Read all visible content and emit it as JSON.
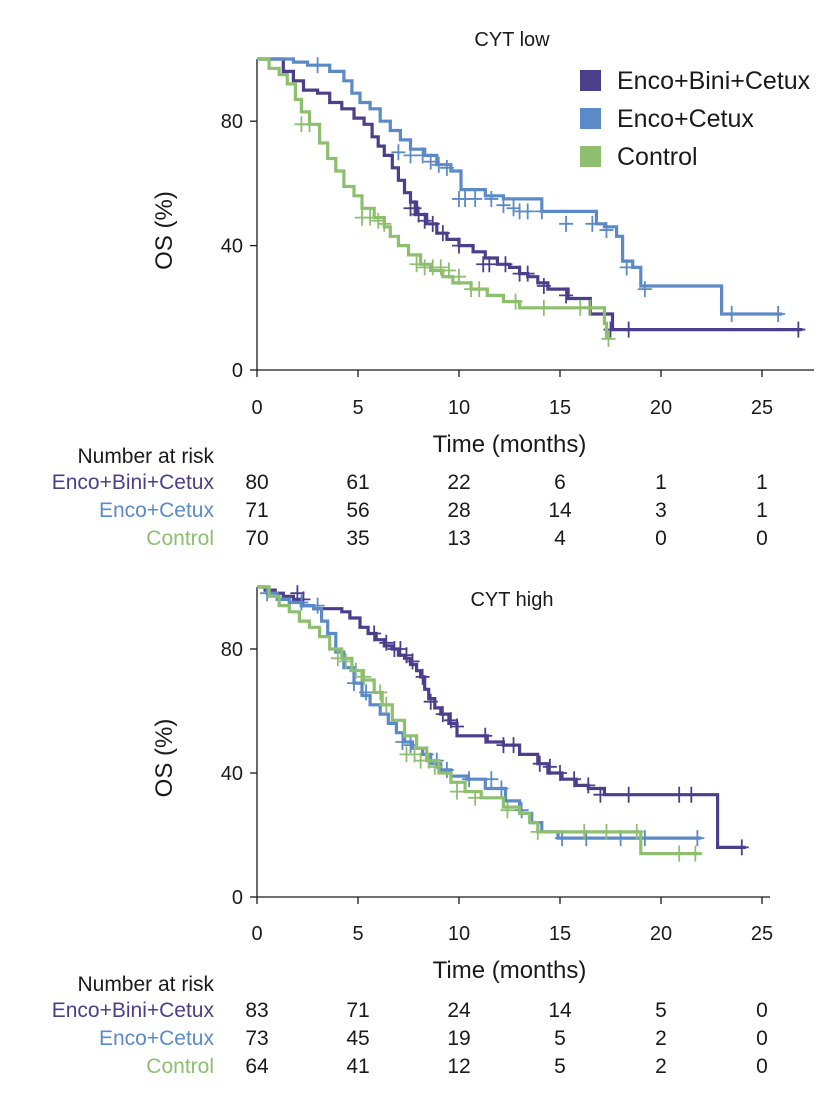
{
  "colors": {
    "s1": "#4b3f8c",
    "s2": "#5b8ac6",
    "s3": "#8dbf6f"
  },
  "legend": {
    "items": [
      "Enco+Bini+Cetux",
      "Enco+Cetux",
      "Control"
    ]
  },
  "risk": {
    "header": "Number at risk",
    "times": [
      0,
      5,
      10,
      15,
      20,
      25
    ]
  },
  "chart_data": [
    {
      "type": "line",
      "title": "CYT low",
      "xlabel": "Time (months)",
      "ylabel": "OS (%)",
      "xlim": [
        0,
        27
      ],
      "ylim": [
        0,
        100
      ],
      "xticks": [
        0,
        5,
        10,
        15,
        20,
        25
      ],
      "yticks": [
        0,
        40,
        80
      ],
      "legend_position": "top-right",
      "series": [
        {
          "name": "Enco+Bini+Cetux",
          "x": [
            0,
            1.3,
            1.8,
            2.3,
            3.0,
            3.6,
            4.2,
            4.8,
            5.3,
            5.7,
            6.0,
            6.3,
            6.7,
            7.0,
            7.3,
            7.6,
            7.9,
            8.4,
            8.9,
            9.4,
            10.0,
            10.7,
            11.3,
            11.9,
            12.5,
            13.0,
            13.4,
            13.9,
            14.4,
            15.4,
            16.5,
            17.6,
            27
          ],
          "y": [
            100,
            96,
            93,
            90,
            89,
            86,
            84,
            81,
            79,
            75,
            72,
            69,
            65,
            61,
            57,
            54,
            50,
            47,
            44,
            42,
            40,
            38,
            36,
            34,
            33,
            31,
            30,
            28,
            26,
            23,
            18,
            13,
            13
          ],
          "censor_x": [
            7.6,
            7.8,
            8.0,
            8.3,
            8.7,
            9.2,
            10.0,
            11.2,
            11.5,
            12.3,
            13.0,
            13.4,
            14.2,
            15.3,
            17.5,
            18.4,
            26.8
          ],
          "censor_y": [
            52,
            52,
            50,
            48,
            47,
            44,
            40,
            34,
            34,
            34,
            31,
            31,
            27,
            24,
            13,
            13,
            13
          ]
        },
        {
          "name": "Enco+Cetux",
          "x": [
            0,
            1.8,
            2.5,
            3.6,
            4.3,
            4.7,
            5.1,
            5.6,
            6.1,
            6.6,
            7.1,
            7.6,
            8.3,
            8.9,
            9.6,
            10.1,
            11.3,
            12.2,
            14.1,
            16.8,
            17.2,
            17.8,
            18.1,
            18.6,
            19.0,
            23.0,
            26.0
          ],
          "y": [
            100,
            99,
            98,
            96,
            93,
            89,
            86,
            84,
            80,
            77,
            74,
            71,
            69,
            66,
            64,
            58,
            56,
            55,
            51,
            47,
            46,
            43,
            35,
            33,
            27,
            18,
            18
          ],
          "censor_x": [
            3.0,
            7.0,
            7.6,
            8.2,
            8.6,
            9.0,
            9.4,
            10.0,
            10.3,
            10.8,
            11.6,
            12.2,
            12.7,
            13.0,
            13.4,
            14.1,
            15.3,
            16.6,
            17.3,
            18.3,
            19.2,
            23.5,
            25.8
          ],
          "censor_y": [
            98,
            70,
            69,
            69,
            67,
            66,
            65,
            55,
            55,
            55,
            55,
            53,
            52,
            51,
            51,
            51,
            47,
            47,
            45,
            33,
            26,
            18,
            18
          ]
        },
        {
          "name": "Control",
          "x": [
            0,
            0.6,
            1.1,
            1.5,
            1.9,
            2.2,
            2.6,
            3.1,
            3.5,
            3.9,
            4.3,
            4.8,
            5.2,
            5.8,
            6.3,
            6.6,
            7.0,
            7.5,
            8.1,
            8.6,
            9.2,
            9.7,
            10.6,
            11.4,
            12.2,
            13.0,
            14.5,
            16.9,
            17.2,
            17.3
          ],
          "y": [
            100,
            97,
            95,
            92,
            87,
            83,
            79,
            73,
            68,
            64,
            59,
            56,
            52,
            49,
            46,
            43,
            40,
            37,
            34,
            32,
            30,
            28,
            26,
            24,
            22,
            20,
            20,
            20,
            15,
            10
          ],
          "censor_x": [
            2.2,
            2.6,
            5.2,
            5.6,
            6.0,
            6.3,
            7.9,
            8.3,
            8.7,
            9.1,
            9.5,
            10.0,
            10.6,
            11.0,
            12.8,
            14.2,
            16.0,
            16.5,
            17.4
          ],
          "censor_y": [
            79,
            79,
            49,
            49,
            48,
            47,
            34,
            33,
            33,
            33,
            32,
            30,
            26,
            26,
            22,
            20,
            20,
            20,
            10
          ]
        }
      ],
      "risk_table": [
        {
          "name": "Enco+Bini+Cetux",
          "values": [
            "80",
            "61",
            "22",
            "6",
            "1",
            "1"
          ]
        },
        {
          "name": "Enco+Cetux",
          "values": [
            "71",
            "56",
            "28",
            "14",
            "3",
            "1"
          ]
        },
        {
          "name": "Control",
          "values": [
            "70",
            "35",
            "13",
            "4",
            "0",
            "0"
          ]
        }
      ]
    },
    {
      "type": "line",
      "title": "CYT high",
      "xlabel": "Time (months)",
      "ylabel": "OS (%)",
      "xlim": [
        0,
        25
      ],
      "ylim": [
        0,
        100
      ],
      "xticks": [
        0,
        5,
        10,
        15,
        20,
        25
      ],
      "yticks": [
        0,
        40,
        80
      ],
      "series": [
        {
          "name": "Enco+Bini+Cetux",
          "x": [
            0,
            0.4,
            0.9,
            1.3,
            1.8,
            2.2,
            2.8,
            3.2,
            4.2,
            4.6,
            5.1,
            5.5,
            5.9,
            6.3,
            6.7,
            7.0,
            7.3,
            7.6,
            7.9,
            8.1,
            8.3,
            8.5,
            8.8,
            9.1,
            9.5,
            9.9,
            11.4,
            12.2,
            13.0,
            13.9,
            14.4,
            15.1,
            15.8,
            16.4,
            17.2,
            22.8,
            24.2
          ],
          "y": [
            100,
            99,
            98,
            97,
            96,
            94,
            93,
            93,
            92,
            90,
            87,
            85,
            83,
            81,
            80,
            78,
            77,
            75,
            73,
            71,
            67,
            64,
            61,
            59,
            56,
            52,
            50,
            49,
            46,
            43,
            40,
            38,
            36,
            35,
            33,
            16,
            16
          ],
          "censor_x": [
            2.0,
            2.3,
            5.8,
            6.4,
            6.8,
            7.1,
            7.4,
            7.7,
            8.2,
            8.6,
            9.2,
            9.6,
            9.9,
            11.3,
            12.2,
            12.7,
            14.0,
            14.5,
            15.0,
            15.7,
            16.4,
            17.0,
            18.4,
            20.9,
            21.5,
            24.0
          ],
          "censor_y": [
            98,
            96,
            85,
            82,
            80,
            80,
            78,
            76,
            71,
            63,
            59,
            57,
            55,
            52,
            49,
            49,
            43,
            42,
            40,
            38,
            36,
            33,
            33,
            33,
            33,
            16
          ]
        },
        {
          "name": "Enco+Cetux",
          "x": [
            0,
            0.5,
            1.0,
            1.6,
            2.2,
            2.8,
            3.2,
            3.5,
            3.9,
            4.3,
            4.8,
            5.2,
            5.6,
            6.1,
            6.5,
            6.9,
            7.3,
            7.7,
            8.2,
            8.6,
            9.1,
            9.6,
            10.4,
            11.3,
            12.3,
            13.0,
            13.6,
            14.1,
            14.9,
            22.0
          ],
          "y": [
            100,
            98,
            96,
            95,
            94,
            93,
            89,
            85,
            79,
            74,
            69,
            65,
            62,
            59,
            56,
            53,
            50,
            48,
            46,
            43,
            41,
            39,
            38,
            35,
            31,
            27,
            24,
            21,
            19,
            19
          ],
          "censor_x": [
            0.5,
            2.2,
            3.0,
            4.8,
            5.4,
            7.2,
            7.6,
            8.4,
            8.9,
            9.4,
            10.5,
            11.6,
            12.1,
            13.1,
            15.1,
            16.3,
            18.0,
            19.2,
            21.8
          ],
          "censor_y": [
            98,
            95,
            94,
            69,
            66,
            50,
            49,
            46,
            44,
            41,
            38,
            38,
            35,
            28,
            19,
            19,
            19,
            19,
            19
          ]
        },
        {
          "name": "Control",
          "x": [
            0,
            0.6,
            1.1,
            1.6,
            2.1,
            2.6,
            3.1,
            3.6,
            4.2,
            4.7,
            5.2,
            5.8,
            6.2,
            6.7,
            7.3,
            7.9,
            8.4,
            9.0,
            9.6,
            10.3,
            11.1,
            12.2,
            13.0,
            13.5,
            13.9,
            19.0,
            22.0
          ],
          "y": [
            100,
            97,
            94,
            92,
            89,
            87,
            84,
            80,
            77,
            73,
            70,
            66,
            62,
            57,
            52,
            48,
            44,
            40,
            37,
            34,
            32,
            29,
            27,
            24,
            21,
            14,
            14
          ],
          "censor_x": [
            4.0,
            4.4,
            4.9,
            5.3,
            6.1,
            6.4,
            7.4,
            7.8,
            8.1,
            8.5,
            8.8,
            9.9,
            10.8,
            12.4,
            13.9,
            16.2,
            17.3,
            18.8,
            20.9,
            21.7
          ],
          "censor_y": [
            77,
            76,
            73,
            71,
            66,
            62,
            46,
            46,
            44,
            44,
            42,
            34,
            32,
            28,
            21,
            21,
            21,
            21,
            14,
            14
          ]
        }
      ],
      "risk_table": [
        {
          "name": "Enco+Bini+Cetux",
          "values": [
            "83",
            "71",
            "24",
            "14",
            "5",
            "0"
          ]
        },
        {
          "name": "Enco+Cetux",
          "values": [
            "73",
            "45",
            "19",
            "5",
            "2",
            "0"
          ]
        },
        {
          "name": "Control",
          "values": [
            "64",
            "41",
            "12",
            "5",
            "2",
            "0"
          ]
        }
      ]
    }
  ]
}
